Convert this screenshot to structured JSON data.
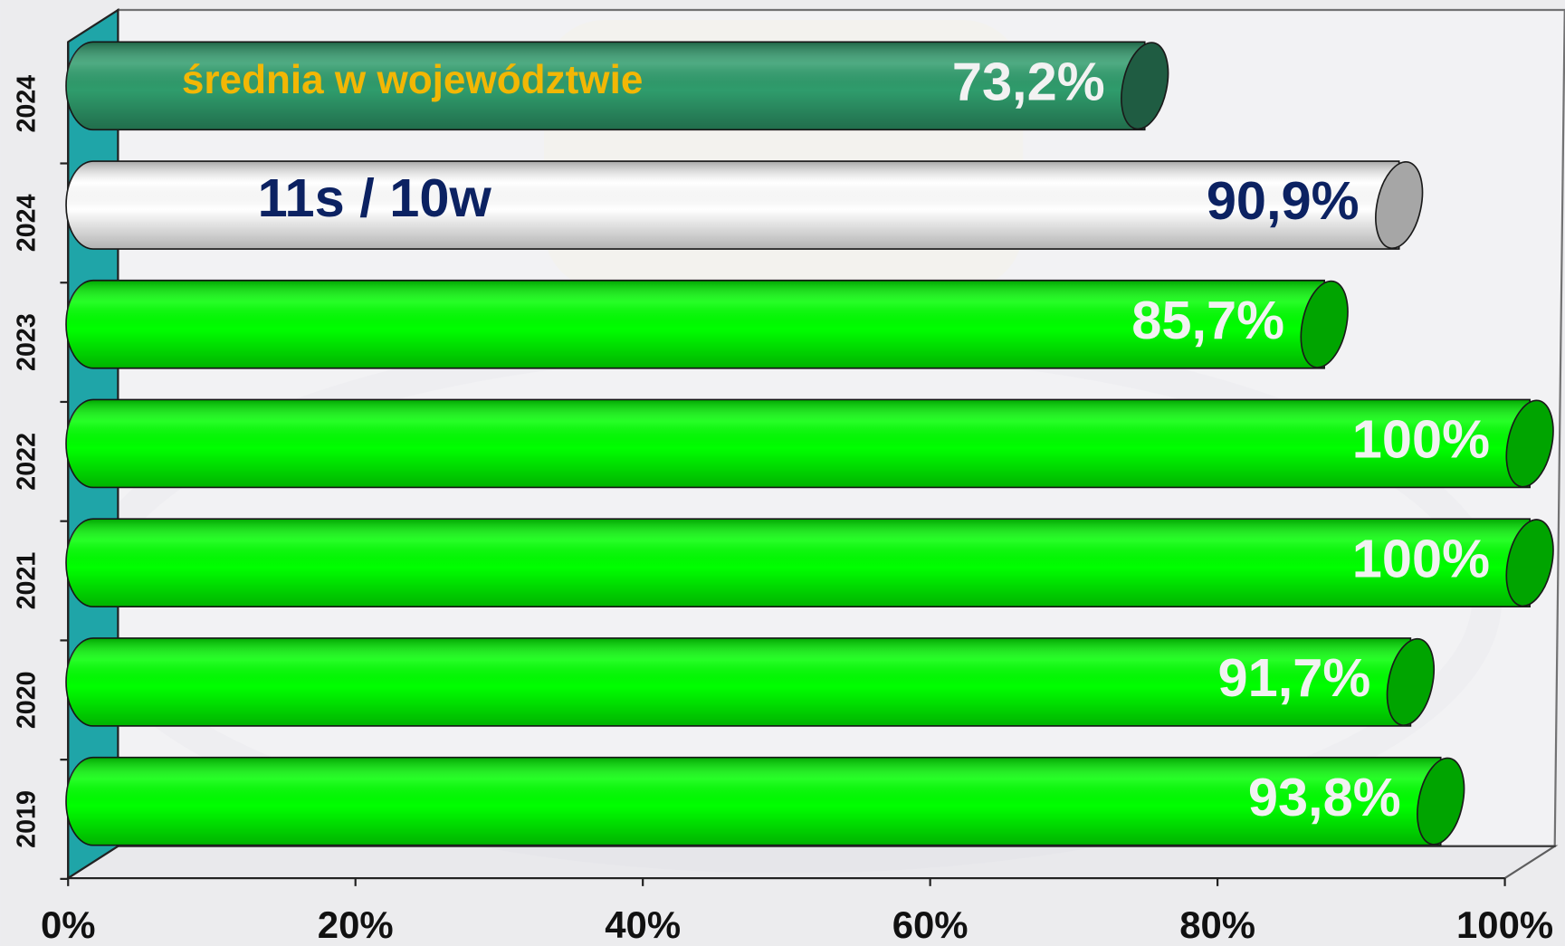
{
  "chart_data": {
    "type": "bar",
    "orientation": "horizontal",
    "categories": [
      "2024",
      "2024",
      "2023",
      "2022",
      "2021",
      "2020",
      "2019"
    ],
    "values": [
      73.2,
      90.9,
      85.7,
      100,
      100,
      91.7,
      93.8
    ],
    "value_labels": [
      "73,2%",
      "90,9%",
      "85,7%",
      "100%",
      "100%",
      "91,7%",
      "93,8%"
    ],
    "bar_annotations": [
      "średnia w województwie",
      "11s / 10w",
      null,
      null,
      null,
      null,
      null
    ],
    "annotation_colors": [
      "#f2b705",
      "#0c2262",
      null,
      null,
      null,
      null,
      null
    ],
    "colors": [
      "#2f9c6c",
      "#ffffff",
      "#00ff00",
      "#00ff00",
      "#00ff00",
      "#00ff00",
      "#00ff00"
    ],
    "cap_colors": [
      "#1f5c42",
      "#a6a6a6",
      "#00a400",
      "#00a400",
      "#00a400",
      "#00a400",
      "#00a400"
    ],
    "label_colors": [
      "#f2f2f2",
      "#0c2262",
      "#f2f2f2",
      "#f2f2f2",
      "#f2f2f2",
      "#f2f2f2",
      "#f2f2f2"
    ],
    "xlim": [
      0,
      100
    ],
    "xticks": [
      {
        "value": 0,
        "label": "0%"
      },
      {
        "value": 20,
        "label": "20%"
      },
      {
        "value": 40,
        "label": "40%"
      },
      {
        "value": 60,
        "label": "60%"
      },
      {
        "value": 80,
        "label": "80%"
      },
      {
        "value": 100,
        "label": "100%"
      }
    ]
  }
}
